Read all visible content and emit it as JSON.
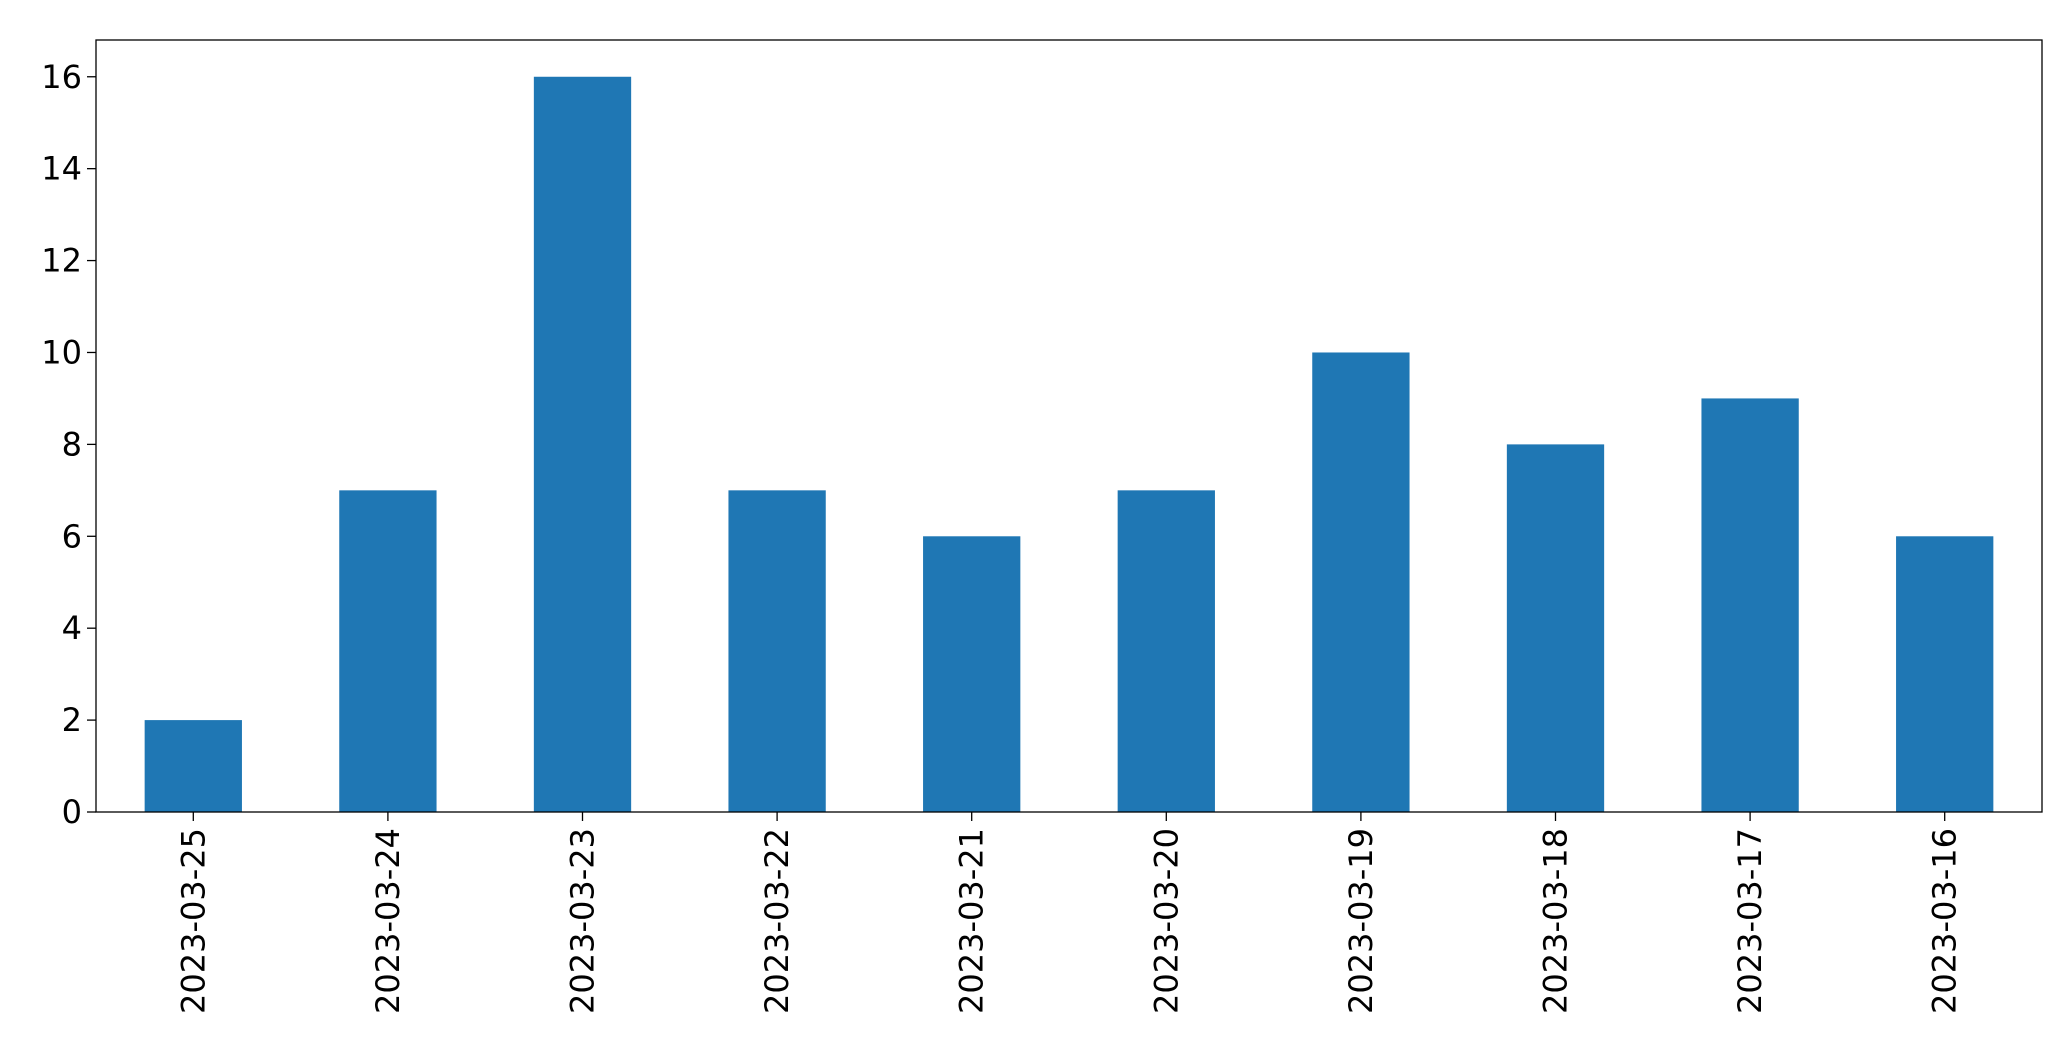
{
  "chart_data": {
    "type": "bar",
    "categories": [
      "2023-03-25",
      "2023-03-24",
      "2023-03-23",
      "2023-03-22",
      "2023-03-21",
      "2023-03-20",
      "2023-03-19",
      "2023-03-18",
      "2023-03-17",
      "2023-03-16"
    ],
    "values": [
      2,
      7,
      16,
      7,
      6,
      7,
      10,
      8,
      9,
      6
    ],
    "color": "#1f77b4",
    "ylim": [
      0,
      16.8
    ],
    "yticks": [
      0,
      2,
      4,
      6,
      8,
      10,
      12,
      14,
      16
    ],
    "grid": false
  }
}
